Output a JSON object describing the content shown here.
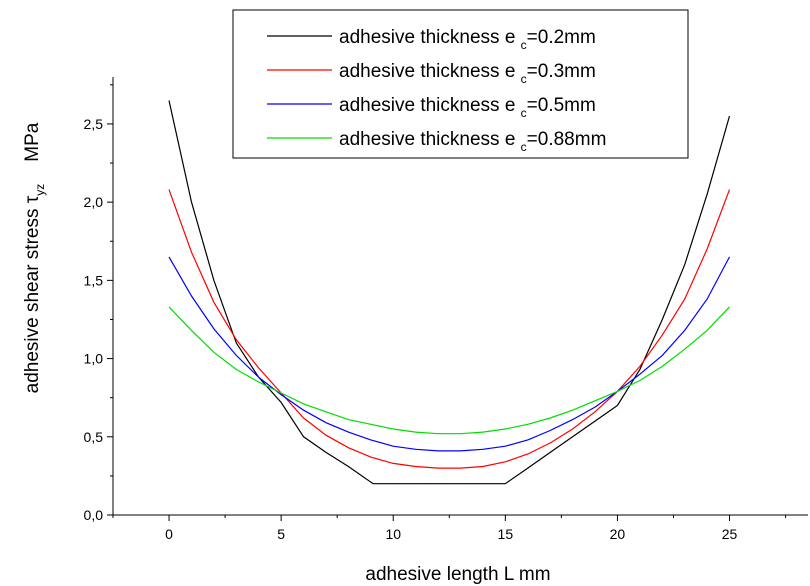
{
  "chart_data": {
    "type": "line",
    "xlabel": "adhesive length  L    mm",
    "ylabel_prefix": "adhesive shear stress  ",
    "ylabel_symbol": "τ",
    "ylabel_subscript": "yz",
    "ylabel_unit": "MPa",
    "xlim": [
      -2.5,
      28.5
    ],
    "ylim": [
      0.0,
      2.8
    ],
    "x_ticks": [
      0,
      5,
      10,
      15,
      20,
      25
    ],
    "x_tick_labels": [
      "0",
      "5",
      "10",
      "15",
      "20",
      "25"
    ],
    "y_ticks": [
      0.0,
      0.5,
      1.0,
      1.5,
      2.0,
      2.5
    ],
    "y_tick_labels": [
      "0,0",
      "0,5",
      "1,0",
      "1,5",
      "2,0",
      "2,5"
    ],
    "grid": false,
    "legend_position": "top-right",
    "series": [
      {
        "name_prefix": "adhesive thickness e ",
        "name_sub": "c",
        "name_suffix": "=0.2mm",
        "color": "#000000",
        "x": [
          0,
          1,
          2,
          3,
          4,
          5,
          6,
          7,
          8,
          9.1,
          10,
          11,
          12,
          13,
          14,
          15,
          16,
          17,
          18,
          19,
          20,
          21,
          22,
          23,
          24,
          25
        ],
        "y": [
          2.65,
          2.0,
          1.5,
          1.1,
          0.88,
          0.72,
          0.5,
          0.4,
          0.31,
          0.2,
          0.2,
          0.2,
          0.2,
          0.2,
          0.2,
          0.2,
          0.3,
          0.4,
          0.5,
          0.6,
          0.7,
          0.93,
          1.25,
          1.6,
          2.05,
          2.55
        ]
      },
      {
        "name_prefix": "adhesive thickness e ",
        "name_sub": "c",
        "name_suffix": "=0.3mm",
        "color": "#ff0000",
        "x": [
          0,
          1,
          2,
          3,
          4,
          5,
          6,
          7,
          8,
          9,
          10,
          11,
          12,
          13,
          14,
          15,
          16,
          17,
          18,
          19,
          20,
          21,
          22,
          23,
          24,
          25
        ],
        "y": [
          2.08,
          1.68,
          1.36,
          1.12,
          0.94,
          0.78,
          0.62,
          0.51,
          0.43,
          0.37,
          0.33,
          0.31,
          0.3,
          0.3,
          0.31,
          0.34,
          0.39,
          0.46,
          0.55,
          0.66,
          0.79,
          0.95,
          1.15,
          1.38,
          1.7,
          2.08
        ]
      },
      {
        "name_prefix": "adhesive thickness e ",
        "name_sub": "c",
        "name_suffix": "=0.5mm",
        "color": "#0000ff",
        "x": [
          0,
          1,
          2,
          3,
          4,
          5,
          6,
          7,
          8,
          9,
          10,
          11,
          12,
          13,
          14,
          15,
          16,
          17,
          18,
          19,
          20,
          21,
          22,
          23,
          24,
          25
        ],
        "y": [
          1.65,
          1.4,
          1.19,
          1.02,
          0.88,
          0.77,
          0.67,
          0.59,
          0.53,
          0.48,
          0.44,
          0.42,
          0.41,
          0.41,
          0.42,
          0.44,
          0.48,
          0.54,
          0.61,
          0.69,
          0.79,
          0.9,
          1.02,
          1.18,
          1.38,
          1.65
        ]
      },
      {
        "name_prefix": "adhesive thickness e ",
        "name_sub": "c",
        "name_suffix": "=0.88mm",
        "color": "#00dd00",
        "x": [
          0,
          1,
          2,
          3,
          4,
          5,
          6,
          7,
          8,
          9,
          10,
          11,
          12,
          13,
          14,
          15,
          16,
          17,
          18,
          19,
          20,
          21,
          22,
          23,
          24,
          25
        ],
        "y": [
          1.33,
          1.18,
          1.04,
          0.93,
          0.85,
          0.78,
          0.71,
          0.66,
          0.61,
          0.58,
          0.55,
          0.53,
          0.52,
          0.52,
          0.53,
          0.55,
          0.58,
          0.62,
          0.67,
          0.73,
          0.79,
          0.86,
          0.95,
          1.06,
          1.18,
          1.33
        ]
      }
    ]
  }
}
